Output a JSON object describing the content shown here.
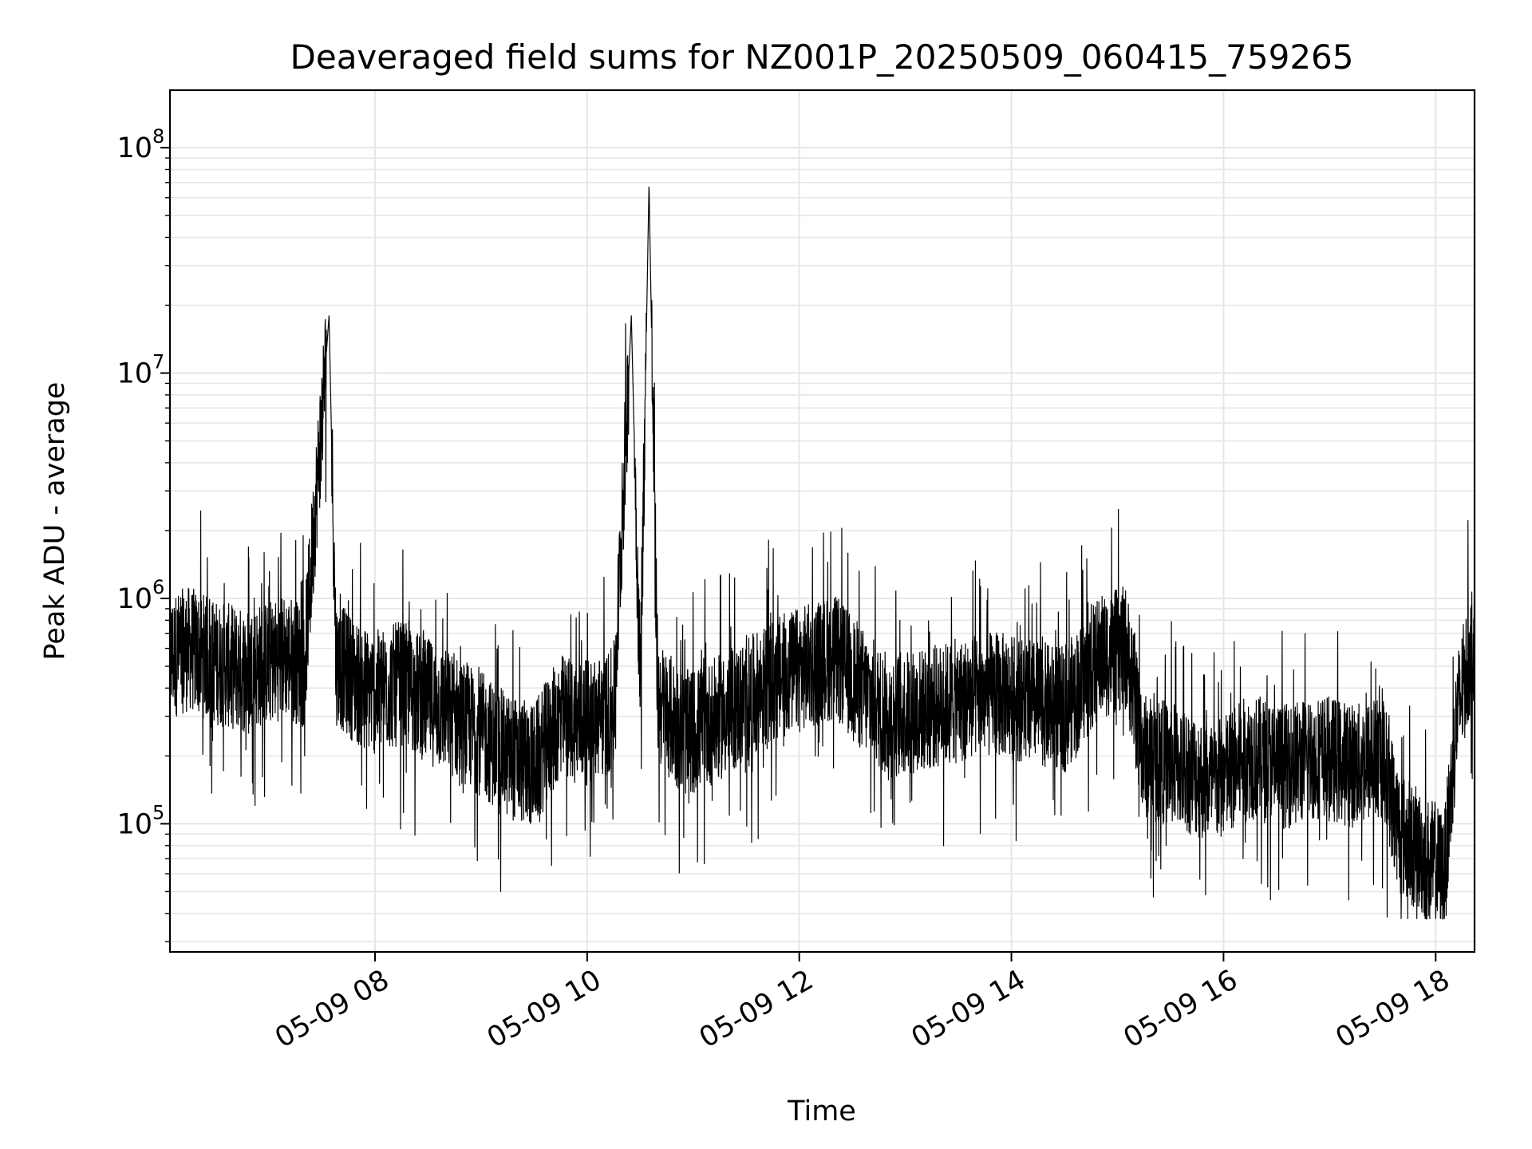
{
  "chart_data": {
    "type": "line",
    "title": "Deaveraged field sums for NZ001P_20250509_060415_759265",
    "xlabel": "Time",
    "ylabel": "Peak ADU - average",
    "yscale": "log",
    "grid": true,
    "legend": "none",
    "line_color": "#000000",
    "grid_color": "#e6e6e6",
    "xlim": [
      "2025-05-09 06:04",
      "2025-05-09 18:22"
    ],
    "ylim": [
      27000,
      180000000
    ],
    "x_ticks": [
      {
        "time": "2025-05-09 08:00",
        "label": "05-09 08"
      },
      {
        "time": "2025-05-09 10:00",
        "label": "05-09 10"
      },
      {
        "time": "2025-05-09 12:00",
        "label": "05-09 12"
      },
      {
        "time": "2025-05-09 14:00",
        "label": "05-09 14"
      },
      {
        "time": "2025-05-09 16:00",
        "label": "05-09 16"
      },
      {
        "time": "2025-05-09 18:00",
        "label": "05-09 18"
      }
    ],
    "y_ticks": [
      {
        "value": 100000,
        "base": "10",
        "exp": "5"
      },
      {
        "value": 1000000,
        "base": "10",
        "exp": "6"
      },
      {
        "value": 10000000,
        "base": "10",
        "exp": "7"
      },
      {
        "value": 100000000,
        "base": "10",
        "exp": "8"
      }
    ],
    "series": [
      {
        "points": [
          [
            "2025-05-09 06:04",
            550000
          ],
          [
            "2025-05-09 06:15",
            600000
          ],
          [
            "2025-05-09 06:30",
            520000
          ],
          [
            "2025-05-09 06:45",
            480000
          ],
          [
            "2025-05-09 07:00",
            520000
          ],
          [
            "2025-05-09 07:10",
            560000
          ],
          [
            "2025-05-09 07:20",
            500000
          ],
          [
            "2025-05-09 07:34",
            18000000
          ],
          [
            "2025-05-09 07:38",
            520000
          ],
          [
            "2025-05-09 07:50",
            420000
          ],
          [
            "2025-05-09 08:00",
            380000
          ],
          [
            "2025-05-09 08:15",
            420000
          ],
          [
            "2025-05-09 08:30",
            350000
          ],
          [
            "2025-05-09 08:45",
            300000
          ],
          [
            "2025-05-09 09:00",
            250000
          ],
          [
            "2025-05-09 09:15",
            200000
          ],
          [
            "2025-05-09 09:30",
            180000
          ],
          [
            "2025-05-09 09:45",
            300000
          ],
          [
            "2025-05-09 10:00",
            280000
          ],
          [
            "2025-05-09 10:15",
            320000
          ],
          [
            "2025-05-09 10:25",
            18000000
          ],
          [
            "2025-05-09 10:30",
            400000
          ],
          [
            "2025-05-09 10:35",
            70000000
          ],
          [
            "2025-05-09 10:40",
            350000
          ],
          [
            "2025-05-09 10:55",
            250000
          ],
          [
            "2025-05-09 11:10",
            280000
          ],
          [
            "2025-05-09 11:30",
            350000
          ],
          [
            "2025-05-09 11:50",
            450000
          ],
          [
            "2025-05-09 12:05",
            500000
          ],
          [
            "2025-05-09 12:20",
            550000
          ],
          [
            "2025-05-09 12:35",
            400000
          ],
          [
            "2025-05-09 12:50",
            300000
          ],
          [
            "2025-05-09 13:10",
            320000
          ],
          [
            "2025-05-09 13:30",
            350000
          ],
          [
            "2025-05-09 13:50",
            380000
          ],
          [
            "2025-05-09 14:10",
            350000
          ],
          [
            "2025-05-09 14:30",
            320000
          ],
          [
            "2025-05-09 14:50",
            550000
          ],
          [
            "2025-05-09 15:05",
            600000
          ],
          [
            "2025-05-09 15:15",
            200000
          ],
          [
            "2025-05-09 15:35",
            180000
          ],
          [
            "2025-05-09 15:55",
            150000
          ],
          [
            "2025-05-09 16:15",
            200000
          ],
          [
            "2025-05-09 16:35",
            180000
          ],
          [
            "2025-05-09 16:55",
            200000
          ],
          [
            "2025-05-09 17:15",
            180000
          ],
          [
            "2025-05-09 17:30",
            200000
          ],
          [
            "2025-05-09 17:40",
            90000
          ],
          [
            "2025-05-09 17:55",
            70000
          ],
          [
            "2025-05-09 18:05",
            60000
          ],
          [
            "2025-05-09 18:12",
            300000
          ],
          [
            "2025-05-09 18:18",
            500000
          ],
          [
            "2025-05-09 18:22",
            700000
          ]
        ]
      }
    ]
  }
}
